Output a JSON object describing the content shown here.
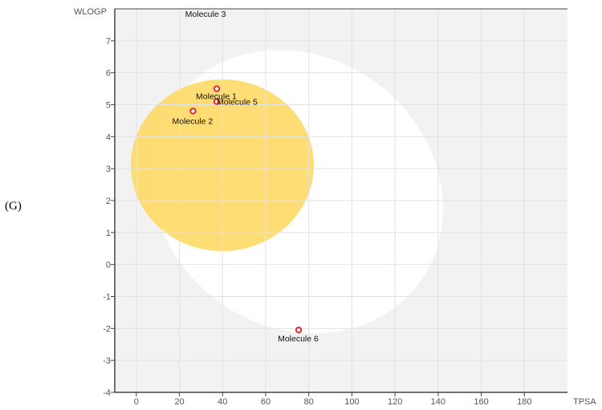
{
  "panel_label": "(G)",
  "chart_data": {
    "type": "scatter",
    "title": "",
    "xlabel": "TPSA",
    "ylabel": "WLOGP",
    "xlim": [
      -10,
      200
    ],
    "ylim": [
      -4,
      8
    ],
    "x_ticks": [
      "0",
      "20",
      "40",
      "60",
      "80",
      "100",
      "120",
      "140",
      "160",
      "180"
    ],
    "y_ticks": [
      "-4",
      "-3",
      "-2",
      "-1",
      "0",
      "1",
      "2",
      "3",
      "4",
      "5",
      "6",
      "7"
    ],
    "grid": true,
    "regions": [
      {
        "shape": "ellipse",
        "fill": "#ffffff"
      },
      {
        "shape": "ellipse",
        "fill": "#ffd966"
      }
    ],
    "points": [
      {
        "label": "Molecule 1",
        "x": 37.3,
        "y": 5.5
      },
      {
        "label": "Molecule 2",
        "x": 26.3,
        "y": 4.8
      },
      {
        "label": "Molecule 3",
        "x": 26,
        "y": 8.3
      },
      {
        "label": "Molecule 5",
        "x": 37.3,
        "y": 5.1
      },
      {
        "label": "Molecule 6",
        "x": 75.3,
        "y": -2.05
      }
    ],
    "marker_color": "#e8242c",
    "plot_bg": "#f2f2f2"
  }
}
